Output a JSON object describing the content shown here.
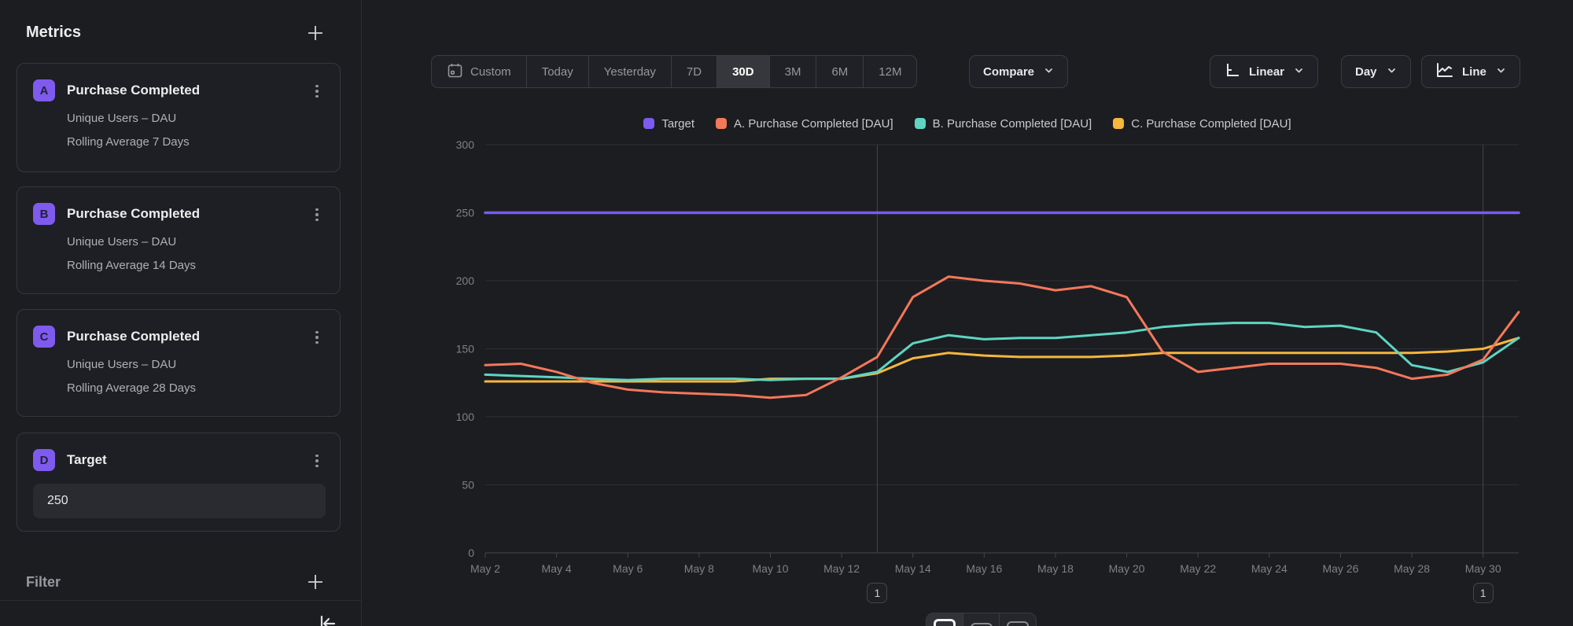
{
  "sidebar": {
    "title": "Metrics",
    "filter_label": "Filter",
    "metrics": [
      {
        "letter": "A",
        "title": "Purchase Completed",
        "subtitle": "Unique Users – DAU",
        "detail": "Rolling Average 7 Days"
      },
      {
        "letter": "B",
        "title": "Purchase Completed",
        "subtitle": "Unique Users – DAU",
        "detail": "Rolling Average 14 Days"
      },
      {
        "letter": "C",
        "title": "Purchase Completed",
        "subtitle": "Unique Users – DAU",
        "detail": "Rolling Average 28 Days"
      }
    ],
    "target": {
      "letter": "D",
      "title": "Target",
      "value": "250"
    }
  },
  "toolbar": {
    "ranges": [
      "Custom",
      "Today",
      "Yesterday",
      "7D",
      "30D",
      "3M",
      "6M",
      "12M"
    ],
    "selected_range": "30D",
    "compare_label": "Compare",
    "scale_label": "Linear",
    "granularity_label": "Day",
    "chart_type_label": "Line"
  },
  "chart_data": {
    "type": "line",
    "x": [
      "May 2",
      "May 3",
      "May 4",
      "May 5",
      "May 6",
      "May 7",
      "May 8",
      "May 9",
      "May 10",
      "May 11",
      "May 12",
      "May 13",
      "May 14",
      "May 15",
      "May 16",
      "May 17",
      "May 18",
      "May 19",
      "May 20",
      "May 21",
      "May 22",
      "May 23",
      "May 24",
      "May 25",
      "May 26",
      "May 27",
      "May 28",
      "May 29",
      "May 30",
      "May 31"
    ],
    "x_tick_every": 2,
    "ylim": [
      0,
      300
    ],
    "yticks": [
      0,
      50,
      100,
      150,
      200,
      250,
      300
    ],
    "legend_position": "top",
    "grid": true,
    "series": [
      {
        "name": "Target",
        "color": "#7b5bf0",
        "width": 3.5,
        "values": [
          250,
          250,
          250,
          250,
          250,
          250,
          250,
          250,
          250,
          250,
          250,
          250,
          250,
          250,
          250,
          250,
          250,
          250,
          250,
          250,
          250,
          250,
          250,
          250,
          250,
          250,
          250,
          250,
          250,
          250
        ]
      },
      {
        "name": "A. Purchase Completed [DAU]",
        "color": "#f4785a",
        "width": 3,
        "values": [
          138,
          139,
          133,
          125,
          120,
          118,
          117,
          116,
          114,
          116,
          129,
          144,
          188,
          203,
          200,
          198,
          193,
          196,
          188,
          148,
          133,
          136,
          139,
          139,
          139,
          136,
          128,
          131,
          142,
          177
        ]
      },
      {
        "name": "B. Purchase Completed [DAU]",
        "color": "#5ed5c2",
        "width": 3,
        "values": [
          131,
          130,
          129,
          128,
          127,
          128,
          128,
          128,
          127,
          128,
          128,
          133,
          154,
          160,
          157,
          158,
          158,
          160,
          162,
          166,
          168,
          169,
          169,
          166,
          167,
          162,
          138,
          133,
          140,
          158
        ]
      },
      {
        "name": "C. Purchase Completed [DAU]",
        "color": "#f6b73c",
        "width": 3,
        "values": [
          126,
          126,
          126,
          126,
          126,
          126,
          126,
          126,
          128,
          128,
          128,
          132,
          143,
          147,
          145,
          144,
          144,
          144,
          145,
          147,
          147,
          147,
          147,
          147,
          147,
          147,
          147,
          148,
          150,
          158
        ]
      }
    ],
    "annotations": [
      {
        "label": "1",
        "x": "May 13"
      },
      {
        "label": "1",
        "x": "May 30"
      }
    ]
  },
  "colors": {
    "background": "#1c1d21",
    "grid": "#2d2e33",
    "axis": "#45464b",
    "tick_text": "#7f8085",
    "accent": "#7b5bf0"
  }
}
